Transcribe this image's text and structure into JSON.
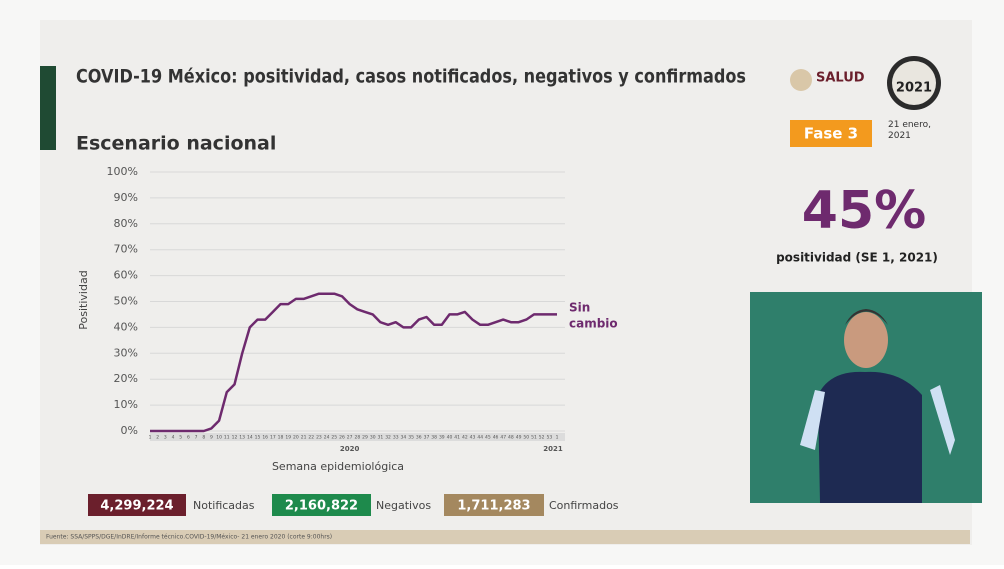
{
  "header": {
    "title": "COVID-19 México: positividad, casos notificados, negativos y confirmados",
    "subtitle": "Escenario nacional",
    "logo": "SALUD",
    "emblem": "2021",
    "phase": "Fase 3",
    "date": "21 enero, 2021"
  },
  "highlight": {
    "value": "45%",
    "label": "positividad (SE 1, 2021)"
  },
  "chart_data": {
    "type": "line",
    "y_label": "Positividad",
    "x_label": "Semana epidemiológica",
    "categories": [
      "1",
      "2",
      "3",
      "4",
      "5",
      "6",
      "7",
      "8",
      "9",
      "10",
      "11",
      "12",
      "13",
      "14",
      "15",
      "16",
      "17",
      "18",
      "19",
      "20",
      "21",
      "22",
      "23",
      "24",
      "25",
      "26",
      "27",
      "28",
      "29",
      "30",
      "31",
      "32",
      "33",
      "34",
      "35",
      "36",
      "37",
      "38",
      "39",
      "40",
      "41",
      "42",
      "43",
      "44",
      "45",
      "46",
      "47",
      "48",
      "49",
      "50",
      "51",
      "52",
      "53",
      "1"
    ],
    "year_labels": [
      "2020",
      "2021"
    ],
    "values": [
      0,
      0,
      0,
      0,
      0,
      0,
      0,
      0,
      1,
      4,
      15,
      18,
      30,
      40,
      43,
      43,
      46,
      49,
      49,
      51,
      51,
      52,
      53,
      53,
      53,
      52,
      49,
      47,
      46,
      45,
      42,
      41,
      42,
      40,
      40,
      43,
      44,
      41,
      41,
      45,
      45,
      46,
      43,
      41,
      41,
      42,
      43,
      42,
      42,
      43,
      45,
      45,
      45,
      45
    ],
    "color": "#6e2a6e",
    "annotation": "Sin cambio",
    "ylim": [
      0,
      100
    ],
    "yticks": [
      {
        "value": 0,
        "label": "0%"
      },
      {
        "value": 10,
        "label": "10%"
      },
      {
        "value": 20,
        "label": "20%"
      },
      {
        "value": 30,
        "label": "30%"
      },
      {
        "value": 40,
        "label": "40%"
      },
      {
        "value": 50,
        "label": "50%"
      },
      {
        "value": 60,
        "label": "60%"
      },
      {
        "value": 70,
        "label": "70%"
      },
      {
        "value": 80,
        "label": "80%"
      },
      {
        "value": 90,
        "label": "90%"
      },
      {
        "value": 100,
        "label": "100%"
      }
    ],
    "grid": true
  },
  "totals": [
    {
      "value": "4,299,224",
      "label": "Notificadas",
      "color": "#6b1f2c"
    },
    {
      "value": "2,160,822",
      "label": "Negativos",
      "color": "#1e8a4c"
    },
    {
      "value": "1,711,283",
      "label": "Confirmados",
      "color": "#a4885f"
    }
  ],
  "source": "Fuente: SSA/SPPS/DGE/InDRE/Informe técnico.COVID-19/México- 21 enero 2020 (corte 9:00hrs)"
}
